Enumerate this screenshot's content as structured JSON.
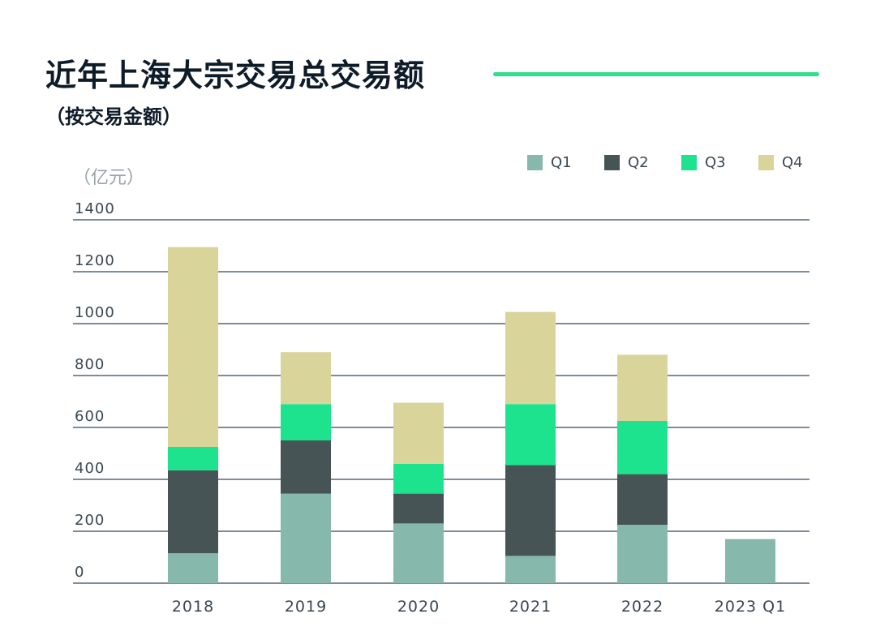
{
  "header": {
    "title": "近年上海大宗交易总交易额",
    "subtitle": "（按交易金额）"
  },
  "colors": {
    "accent": "#2ee08c",
    "Q1": "#86b9ab",
    "Q2": "#465456",
    "Q3": "#1ee38e",
    "Q4": "#d8d49a",
    "grid": "#33475a",
    "tick": "#3a4750",
    "unit": "#9aa3a8"
  },
  "chart_data": {
    "type": "bar",
    "stacked": true,
    "unit_label": "（亿元）",
    "categories": [
      "2018",
      "2019",
      "2020",
      "2021",
      "2022",
      "2023 Q1"
    ],
    "series": [
      {
        "name": "Q1",
        "values": [
          115,
          345,
          230,
          105,
          225,
          170
        ]
      },
      {
        "name": "Q2",
        "values": [
          320,
          205,
          115,
          350,
          195,
          0
        ]
      },
      {
        "name": "Q3",
        "values": [
          90,
          140,
          115,
          235,
          205,
          0
        ]
      },
      {
        "name": "Q4",
        "values": [
          770,
          200,
          235,
          355,
          255,
          0
        ]
      }
    ],
    "ylim": [
      0,
      1400
    ],
    "yticks": [
      "0",
      "200",
      "400",
      "600",
      "800",
      "1000",
      "1200",
      "1400"
    ],
    "grid": true,
    "legend_position": "top-right"
  }
}
